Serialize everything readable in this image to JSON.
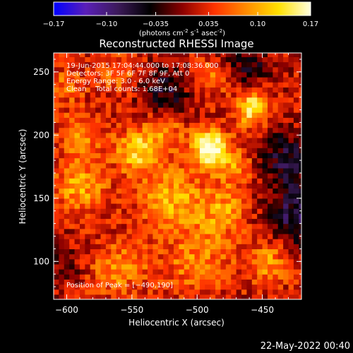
{
  "colorbar": {
    "ticks": [
      "-0.17",
      "-0.10",
      "-0.035",
      "0.035",
      "0.10",
      "0.17"
    ],
    "tick_values": [
      -0.17,
      -0.1,
      -0.035,
      0.035,
      0.1,
      0.17
    ],
    "range": [
      -0.17,
      0.17
    ],
    "units_pre": "(photons cm",
    "units_sup1": "-2",
    "units_mid1": " s",
    "units_sup2": "-1",
    "units_mid2": " asec",
    "units_sup3": "-2",
    "units_post": ")",
    "colors": [
      "#0000ff",
      "#5a1fb8",
      "#3c1a5a",
      "#000000",
      "#8b0000",
      "#ff3300",
      "#ff8c00",
      "#ffe000",
      "#ffffe0"
    ]
  },
  "chart_data": {
    "type": "heatmap",
    "title": "Reconstructed RHESSI Image",
    "xlabel": "Heliocentric X (arcsec)",
    "ylabel": "Heliocentric Y (arcsec)",
    "xlim": [
      -610,
      -420
    ],
    "ylim": [
      70,
      265
    ],
    "xticks": [
      -600,
      -550,
      -500,
      -450
    ],
    "yticks": [
      100,
      150,
      200,
      250
    ],
    "xtick_labels": [
      "−600",
      "−550",
      "−500",
      "−450"
    ],
    "ytick_labels": [
      "100",
      "150",
      "200",
      "250"
    ],
    "annotations": [
      "19-Jun-2015 17:04:44.000 to 17:08:36.000",
      "Detectors: 3F 5F 6F 7F 8F 9F, Att 0",
      "Energy Range: 3.0 - 6.0 keV",
      "Clean    Total counts: 1.68E+04"
    ],
    "peak_label": "Position of Peak = [−490,190]",
    "peak": [
      -490,
      190
    ],
    "blobs": [
      {
        "x": -490,
        "y": 190,
        "amp": 0.17,
        "s": 10
      },
      {
        "x": -458,
        "y": 222,
        "amp": 0.13,
        "s": 9
      },
      {
        "x": -545,
        "y": 188,
        "amp": 0.11,
        "s": 12
      },
      {
        "x": -590,
        "y": 160,
        "amp": 0.08,
        "s": 14
      },
      {
        "x": -590,
        "y": 200,
        "amp": 0.07,
        "s": 12
      },
      {
        "x": -520,
        "y": 150,
        "amp": 0.08,
        "s": 18
      },
      {
        "x": -480,
        "y": 140,
        "amp": 0.07,
        "s": 14
      },
      {
        "x": -500,
        "y": 100,
        "amp": 0.06,
        "s": 18
      },
      {
        "x": -560,
        "y": 95,
        "amp": 0.06,
        "s": 16
      },
      {
        "x": -445,
        "y": 100,
        "amp": 0.07,
        "s": 12
      },
      {
        "x": -600,
        "y": 240,
        "amp": 0.05,
        "s": 10
      },
      {
        "x": -560,
        "y": 250,
        "amp": 0.05,
        "s": 12
      },
      {
        "x": -490,
        "y": 245,
        "amp": 0.05,
        "s": 10
      },
      {
        "x": -525,
        "y": 205,
        "amp": 0.06,
        "s": 10
      },
      {
        "x": -470,
        "y": 175,
        "amp": 0.06,
        "s": 10
      },
      {
        "x": -430,
        "y": 180,
        "amp": -0.08,
        "s": 16
      },
      {
        "x": -425,
        "y": 135,
        "amp": -0.09,
        "s": 16
      },
      {
        "x": -525,
        "y": 235,
        "amp": -0.07,
        "s": 14
      },
      {
        "x": -460,
        "y": 255,
        "amp": -0.06,
        "s": 12
      },
      {
        "x": -600,
        "y": 100,
        "amp": -0.04,
        "s": 10
      }
    ]
  },
  "timestamp": "22-May-2022 00:40"
}
